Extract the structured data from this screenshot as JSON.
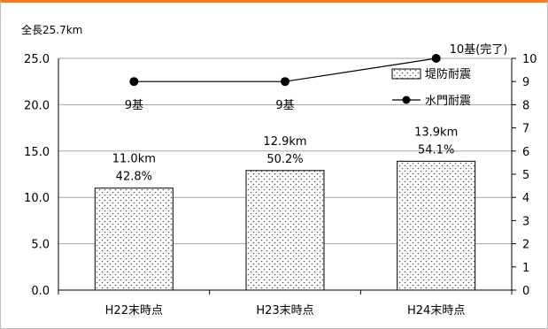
{
  "chart_data": {
    "type": "bar",
    "unit_label": "全長25.7km",
    "categories": [
      "H22末時点",
      "H23末時点",
      "H24末時点"
    ],
    "series": [
      {
        "name": "堤防耐震",
        "kind": "bar",
        "axis": "left",
        "values": [
          11.0,
          12.9,
          13.9
        ],
        "labels_line1": [
          "11.0km",
          "12.9km",
          "13.9km"
        ],
        "labels_line2": [
          "42.8%",
          "50.2%",
          "54.1%"
        ],
        "pattern": "dotted"
      },
      {
        "name": "水門耐震",
        "kind": "line",
        "axis": "right",
        "values": [
          9,
          9,
          10
        ],
        "labels": [
          "9基",
          "9基",
          "10基(完了)"
        ],
        "marker": "circle"
      }
    ],
    "left_axis": {
      "min": 0,
      "max": 25,
      "ticks": [
        "0.0",
        "5.0",
        "10.0",
        "15.0",
        "20.0",
        "25.0"
      ]
    },
    "right_axis": {
      "min": 0,
      "max": 10,
      "ticks": [
        "0",
        "1",
        "2",
        "3",
        "4",
        "5",
        "6",
        "7",
        "8",
        "9",
        "10"
      ]
    },
    "grid": true,
    "legend_position": "top-right",
    "colors": {
      "frame_top": "#ed7d31",
      "bar_fill": "#ffffff",
      "bar_dots": "#595959",
      "line": "#000000",
      "grid": "#a6a6a6"
    }
  }
}
